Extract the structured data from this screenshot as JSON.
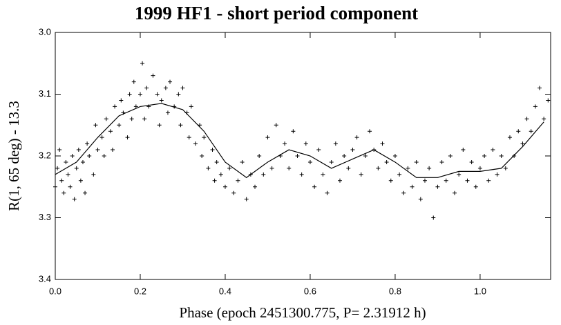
{
  "chart_data": {
    "type": "scatter",
    "title": "1999 HF1 - short period component",
    "x_label": "Phase (epoch 2451300.775, P= 2.31912 h)",
    "y_label": "R(1, 65 deg) - 13.3",
    "xlim": [
      0,
      1.166
    ],
    "ylim": [
      3.0,
      3.4
    ],
    "invert_y": true,
    "xticks": [
      {
        "value": 0,
        "label": "0.0"
      },
      {
        "value": 0.2,
        "label": "0.2"
      },
      {
        "value": 0.4,
        "label": "0.4"
      },
      {
        "value": 0.6,
        "label": "0.6"
      },
      {
        "value": 0.8,
        "label": "0.8"
      },
      {
        "value": 1,
        "label": "1.0"
      }
    ],
    "yticks": [
      {
        "value": 3.0,
        "label": "3.0"
      },
      {
        "value": 3.1,
        "label": "3.1"
      },
      {
        "value": 3.2,
        "label": "3.2"
      },
      {
        "value": 3.3,
        "label": "3.3"
      },
      {
        "value": 3.4,
        "label": "3.4"
      }
    ],
    "series": [
      {
        "style": "marker",
        "color": "#000000",
        "x": [
          0.0,
          0.005,
          0.01,
          0.015,
          0.02,
          0.025,
          0.03,
          0.035,
          0.04,
          0.045,
          0.05,
          0.055,
          0.06,
          0.065,
          0.07,
          0.075,
          0.08,
          0.09,
          0.095,
          0.1,
          0.11,
          0.115,
          0.12,
          0.13,
          0.135,
          0.14,
          0.15,
          0.155,
          0.16,
          0.17,
          0.175,
          0.18,
          0.185,
          0.19,
          0.2,
          0.205,
          0.21,
          0.215,
          0.22,
          0.23,
          0.24,
          0.245,
          0.25,
          0.26,
          0.265,
          0.27,
          0.28,
          0.29,
          0.295,
          0.3,
          0.31,
          0.315,
          0.32,
          0.33,
          0.34,
          0.345,
          0.35,
          0.36,
          0.37,
          0.375,
          0.38,
          0.39,
          0.4,
          0.41,
          0.42,
          0.43,
          0.44,
          0.45,
          0.46,
          0.47,
          0.48,
          0.49,
          0.5,
          0.51,
          0.52,
          0.53,
          0.54,
          0.55,
          0.56,
          0.57,
          0.58,
          0.59,
          0.6,
          0.61,
          0.62,
          0.63,
          0.64,
          0.65,
          0.66,
          0.67,
          0.68,
          0.69,
          0.7,
          0.71,
          0.72,
          0.73,
          0.74,
          0.75,
          0.76,
          0.77,
          0.78,
          0.79,
          0.8,
          0.81,
          0.82,
          0.83,
          0.84,
          0.85,
          0.86,
          0.87,
          0.88,
          0.89,
          0.9,
          0.91,
          0.92,
          0.93,
          0.94,
          0.95,
          0.96,
          0.97,
          0.98,
          0.99,
          1.0,
          1.01,
          1.02,
          1.03,
          1.04,
          1.05,
          1.06,
          1.07,
          1.08,
          1.09,
          1.1,
          1.11,
          1.12,
          1.13,
          1.14,
          1.15,
          1.16
        ],
        "values": [
          3.25,
          3.22,
          3.19,
          3.24,
          3.26,
          3.21,
          3.23,
          3.25,
          3.2,
          3.27,
          3.22,
          3.19,
          3.24,
          3.21,
          3.26,
          3.18,
          3.2,
          3.23,
          3.15,
          3.19,
          3.17,
          3.2,
          3.14,
          3.16,
          3.19,
          3.12,
          3.15,
          3.11,
          3.13,
          3.17,
          3.1,
          3.14,
          3.08,
          3.12,
          3.1,
          3.05,
          3.14,
          3.09,
          3.12,
          3.07,
          3.1,
          3.15,
          3.11,
          3.09,
          3.13,
          3.08,
          3.12,
          3.1,
          3.15,
          3.09,
          3.13,
          3.17,
          3.12,
          3.18,
          3.15,
          3.2,
          3.17,
          3.22,
          3.19,
          3.24,
          3.21,
          3.23,
          3.25,
          3.22,
          3.26,
          3.24,
          3.21,
          3.27,
          3.23,
          3.25,
          3.2,
          3.23,
          3.17,
          3.22,
          3.15,
          3.2,
          3.18,
          3.22,
          3.16,
          3.2,
          3.23,
          3.18,
          3.21,
          3.25,
          3.19,
          3.23,
          3.26,
          3.21,
          3.18,
          3.24,
          3.2,
          3.22,
          3.19,
          3.17,
          3.23,
          3.2,
          3.16,
          3.19,
          3.22,
          3.18,
          3.21,
          3.24,
          3.2,
          3.23,
          3.26,
          3.22,
          3.25,
          3.21,
          3.27,
          3.24,
          3.22,
          3.3,
          3.25,
          3.21,
          3.24,
          3.2,
          3.26,
          3.23,
          3.19,
          3.24,
          3.21,
          3.25,
          3.22,
          3.2,
          3.24,
          3.19,
          3.23,
          3.2,
          3.22,
          3.17,
          3.2,
          3.16,
          3.18,
          3.14,
          3.16,
          3.12,
          3.09,
          3.14,
          3.11
        ]
      },
      {
        "style": "line",
        "color": "#000000",
        "x": [
          0.0,
          0.05,
          0.1,
          0.15,
          0.2,
          0.25,
          0.3,
          0.35,
          0.4,
          0.45,
          0.5,
          0.55,
          0.6,
          0.65,
          0.7,
          0.75,
          0.8,
          0.85,
          0.9,
          0.95,
          1.0,
          1.05,
          1.1,
          1.15
        ],
        "values": [
          3.23,
          3.21,
          3.17,
          3.135,
          3.12,
          3.115,
          3.125,
          3.16,
          3.21,
          3.235,
          3.21,
          3.19,
          3.2,
          3.22,
          3.205,
          3.19,
          3.21,
          3.235,
          3.235,
          3.225,
          3.225,
          3.22,
          3.185,
          3.145
        ]
      }
    ]
  }
}
